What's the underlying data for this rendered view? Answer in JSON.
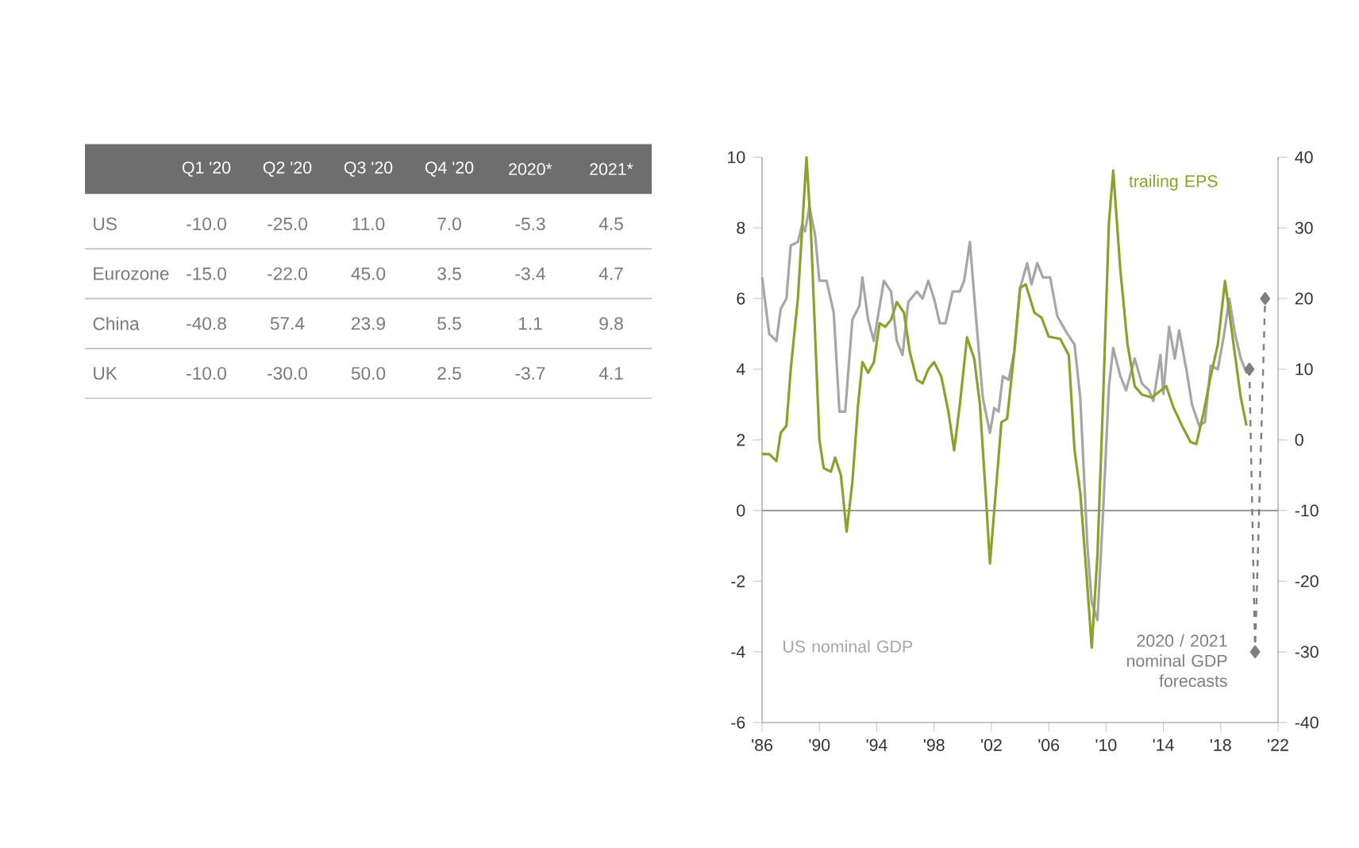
{
  "chart_data": [
    {
      "type": "other",
      "categories": [
        "Q1 '20",
        "Q2 '20",
        "Q3 '20",
        "Q4 '20",
        "2020*",
        "2021*"
      ],
      "y_categories": [
        "US",
        "Eurozone",
        "China",
        "UK"
      ],
      "cell_labels": [
        [
          "-10.0",
          "-25.0",
          "11.0",
          "7.0",
          "-5.3",
          "4.5"
        ],
        [
          "-15.0",
          "-22.0",
          "45.0",
          "3.5",
          "-3.4",
          "4.7"
        ],
        [
          "-40.8",
          "57.4",
          "23.9",
          "5.5",
          "1.1",
          "9.8"
        ],
        [
          "-10.0",
          "-30.0",
          "50.0",
          "2.5",
          "-3.7",
          "4.1"
        ]
      ],
      "data_labels": true
    },
    {
      "type": "line",
      "grid": false,
      "xlim": [
        1986,
        2022
      ],
      "xticks": [
        {
          "value": 1986,
          "label": "'86"
        },
        {
          "value": 1990,
          "label": "'90"
        },
        {
          "value": 1994,
          "label": "'94"
        },
        {
          "value": 1998,
          "label": "'98"
        },
        {
          "value": 2002,
          "label": "'02"
        },
        {
          "value": 2006,
          "label": "'06"
        },
        {
          "value": 2010,
          "label": "'10"
        },
        {
          "value": 2014,
          "label": "'14"
        },
        {
          "value": 2018,
          "label": "'18"
        },
        {
          "value": 2022,
          "label": "'22"
        }
      ],
      "ylim": [
        -6,
        10
      ],
      "yticks": [
        -6,
        -4,
        -2,
        0,
        2,
        4,
        6,
        8,
        10
      ],
      "y2lim": [
        -40,
        40
      ],
      "y2ticks": [
        -40,
        -30,
        -20,
        -10,
        0,
        10,
        20,
        30,
        40
      ],
      "ref_lines": [
        {
          "axis": "y",
          "value": 0,
          "color": "#999999"
        }
      ],
      "series": [
        {
          "name": "US nominal GDP",
          "color": "#a6a6a6",
          "axis": "y",
          "line_style": "solid",
          "marker": "none",
          "x": [
            1986.0,
            1986.5,
            1987.0,
            1987.3,
            1987.7,
            1988.0,
            1988.5,
            1988.8,
            1989.0,
            1989.3,
            1989.7,
            1990.0,
            1990.5,
            1991.0,
            1991.4,
            1991.8,
            1992.3,
            1992.8,
            1993.0,
            1993.4,
            1993.8,
            1994.5,
            1995.0,
            1995.4,
            1995.8,
            1996.2,
            1996.8,
            1997.2,
            1997.6,
            1998.0,
            1998.4,
            1998.8,
            1999.3,
            1999.8,
            2000.1,
            2000.5,
            2000.9,
            2001.4,
            2001.9,
            2002.2,
            2002.5,
            2002.8,
            2003.2,
            2003.6,
            2004.0,
            2004.5,
            2004.8,
            2005.2,
            2005.6,
            2006.1,
            2006.6,
            2007.3,
            2007.8,
            2008.2,
            2008.7,
            2009.0,
            2009.4,
            2009.8,
            2010.2,
            2010.5,
            2011.0,
            2011.4,
            2012.0,
            2012.5,
            2013.0,
            2013.3,
            2013.8,
            2014.0,
            2014.4,
            2014.8,
            2015.1,
            2015.6,
            2016.0,
            2016.5,
            2016.9,
            2017.3,
            2017.8,
            2018.2,
            2018.6,
            2019.0,
            2019.4,
            2019.8,
            2020.0
          ],
          "values": [
            6.6,
            5.0,
            4.8,
            5.7,
            6.0,
            7.5,
            7.6,
            8.1,
            7.9,
            8.6,
            7.8,
            6.5,
            6.5,
            5.6,
            2.8,
            2.8,
            5.4,
            5.8,
            6.6,
            5.4,
            4.8,
            6.5,
            6.2,
            4.8,
            4.4,
            5.9,
            6.2,
            6.0,
            6.5,
            6.0,
            5.3,
            5.3,
            6.2,
            6.2,
            6.5,
            7.6,
            5.6,
            3.2,
            2.2,
            2.9,
            2.8,
            3.8,
            3.7,
            4.5,
            6.3,
            7.0,
            6.4,
            7.0,
            6.6,
            6.6,
            5.5,
            5.0,
            4.7,
            3.2,
            -1.0,
            -2.6,
            -3.1,
            0.0,
            3.5,
            4.6,
            3.8,
            3.4,
            4.3,
            3.6,
            3.4,
            3.1,
            4.4,
            3.3,
            5.2,
            4.3,
            5.1,
            4.0,
            3.0,
            2.4,
            2.5,
            4.1,
            4.0,
            4.9,
            6.0,
            5.0,
            4.3,
            3.9,
            4.0
          ]
        },
        {
          "name": "trailing EPS",
          "color": "#8aa12c",
          "axis": "y2",
          "line_style": "solid",
          "marker": "none",
          "x": [
            1986.0,
            1986.5,
            1987.0,
            1987.3,
            1987.7,
            1988.0,
            1988.5,
            1988.8,
            1989.1,
            1989.4,
            1989.7,
            1990.0,
            1990.3,
            1990.8,
            1991.1,
            1991.5,
            1991.9,
            1992.3,
            1992.7,
            1993.0,
            1993.4,
            1993.8,
            1994.2,
            1994.6,
            1995.0,
            1995.4,
            1995.9,
            1996.3,
            1996.8,
            1997.2,
            1997.6,
            1998.0,
            1998.5,
            1999.0,
            1999.4,
            1999.8,
            2000.3,
            2000.8,
            2001.2,
            2001.6,
            2001.9,
            2002.3,
            2002.7,
            2003.1,
            2003.6,
            2004.0,
            2004.4,
            2005.0,
            2005.5,
            2006.0,
            2006.8,
            2007.4,
            2007.8,
            2008.2,
            2008.7,
            2009.0,
            2009.4,
            2009.8,
            2010.2,
            2010.5,
            2011.0,
            2011.5,
            2012.0,
            2012.5,
            2013.2,
            2013.7,
            2014.2,
            2014.7,
            2015.3,
            2015.9,
            2016.3,
            2016.8,
            2017.3,
            2017.8,
            2018.3,
            2018.6,
            2019.0,
            2019.4,
            2019.8
          ],
          "values": [
            -2,
            -2,
            -3,
            1,
            2,
            10,
            20,
            30,
            40,
            30,
            15,
            0,
            -4,
            -4.5,
            -2.5,
            -5,
            -13,
            -6,
            5,
            11,
            9.5,
            11,
            16.5,
            16,
            17,
            19.5,
            18,
            12.5,
            8.5,
            8,
            10,
            11,
            9,
            4,
            -1.5,
            5,
            14.5,
            11.5,
            5,
            -7.5,
            -17.5,
            -7.5,
            2.5,
            3,
            12.5,
            21.5,
            22,
            18,
            17.3,
            14.6,
            14.3,
            12,
            -1.4,
            -7.4,
            -20.8,
            -29.4,
            -16.3,
            6,
            30.7,
            38.1,
            24,
            13.5,
            7.6,
            6.4,
            6,
            6.8,
            7.6,
            4.6,
            2,
            -0.3,
            -0.6,
            3.8,
            9,
            13.5,
            22.5,
            18,
            12,
            6,
            2
          ]
        },
        {
          "name": "2020 / 2021 nominal GDP forecasts",
          "color": "#7f7f7f",
          "axis": "y",
          "line_style": "dashed",
          "marker": "diamond",
          "x": [
            2020.0,
            2020.4,
            2021.1
          ],
          "values": [
            4.0,
            -4,
            6
          ]
        }
      ]
    }
  ]
}
